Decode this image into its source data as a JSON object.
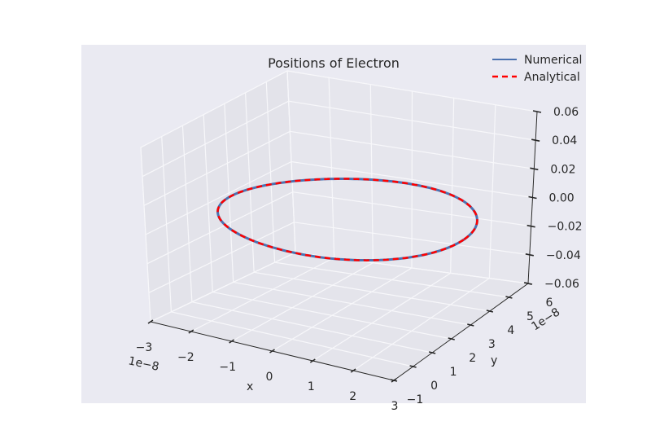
{
  "chart_data": {
    "type": "line",
    "title": "Positions of Electron",
    "projection": "3d",
    "xlabel": "x",
    "ylabel": "y",
    "zlabel": "",
    "x_offset_text": "1e−8",
    "y_offset_text": "1e−8",
    "xlim": [
      -3,
      3
    ],
    "ylim": [
      -1,
      6
    ],
    "zlim": [
      -0.06,
      0.06
    ],
    "x_ticks": [
      "−3",
      "−2",
      "−1",
      "0",
      "1",
      "2",
      "3"
    ],
    "y_ticks": [
      "−1",
      "0",
      "1",
      "2",
      "3",
      "4",
      "5",
      "6"
    ],
    "z_ticks": [
      "−0.06",
      "−0.04",
      "−0.02",
      "0.00",
      "0.02",
      "0.04",
      "0.06"
    ],
    "grid": true,
    "legend_position": "top-right",
    "series": [
      {
        "name": "Numerical",
        "color": "#4c72b0",
        "style": "solid",
        "shape": "circle",
        "center": [
          0,
          2.85,
          0
        ],
        "radius": 2.85,
        "z": 0
      },
      {
        "name": "Analytical",
        "color": "#ff0000",
        "style": "dashed",
        "shape": "circle",
        "center": [
          0,
          2.85,
          0
        ],
        "radius": 2.85,
        "z": 0
      }
    ]
  }
}
